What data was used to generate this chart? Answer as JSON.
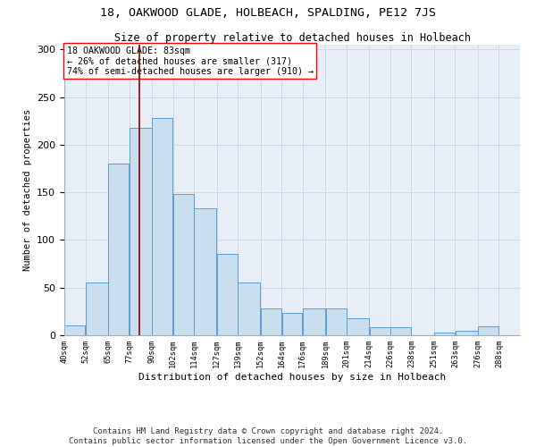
{
  "title1": "18, OAKWOOD GLADE, HOLBEACH, SPALDING, PE12 7JS",
  "title2": "Size of property relative to detached houses in Holbeach",
  "xlabel": "Distribution of detached houses by size in Holbeach",
  "ylabel": "Number of detached properties",
  "footer1": "Contains HM Land Registry data © Crown copyright and database right 2024.",
  "footer2": "Contains public sector information licensed under the Open Government Licence v3.0.",
  "annotation_line1": "18 OAKWOOD GLADE: 83sqm",
  "annotation_line2": "← 26% of detached houses are smaller (317)",
  "annotation_line3": "74% of semi-detached houses are larger (910) →",
  "bar_color": "#c9dff0",
  "bar_edge_color": "#5b9bd5",
  "vline_color": "#8b0000",
  "vline_x": 83,
  "categories": [
    "40sqm",
    "52sqm",
    "65sqm",
    "77sqm",
    "90sqm",
    "102sqm",
    "114sqm",
    "127sqm",
    "139sqm",
    "152sqm",
    "164sqm",
    "176sqm",
    "189sqm",
    "201sqm",
    "214sqm",
    "226sqm",
    "238sqm",
    "251sqm",
    "263sqm",
    "276sqm",
    "288sqm"
  ],
  "bin_edges": [
    40,
    52,
    65,
    77,
    90,
    102,
    114,
    127,
    139,
    152,
    164,
    176,
    189,
    201,
    214,
    226,
    238,
    251,
    263,
    276,
    288,
    300
  ],
  "values": [
    10,
    55,
    180,
    218,
    228,
    148,
    133,
    85,
    55,
    28,
    23,
    28,
    28,
    18,
    8,
    8,
    0,
    3,
    5,
    9,
    0
  ],
  "ylim": [
    0,
    305
  ],
  "yticks": [
    0,
    50,
    100,
    150,
    200,
    250,
    300
  ],
  "grid_color": "#d0d8e8",
  "bg_color": "#e8eef8",
  "title1_fontsize": 9.5,
  "title2_fontsize": 8.5,
  "annotation_fontsize": 7.2,
  "footer_fontsize": 6.5,
  "ylabel_fontsize": 7.5,
  "xlabel_fontsize": 8.0,
  "ytick_fontsize": 8.0,
  "xtick_fontsize": 6.2
}
